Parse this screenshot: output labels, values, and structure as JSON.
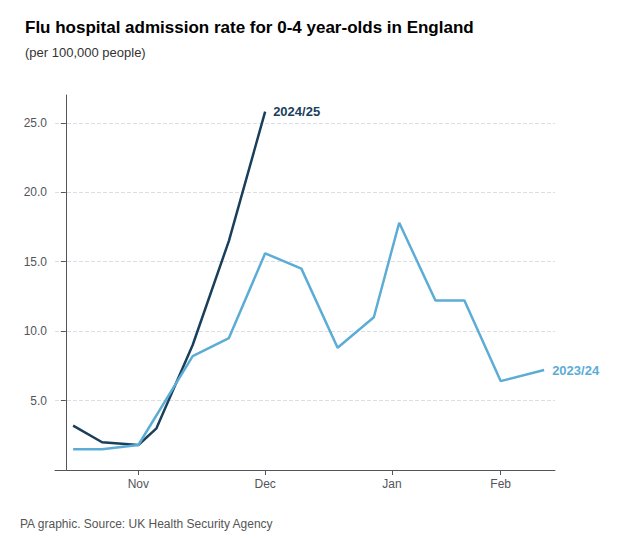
{
  "chart_data": {
    "type": "line",
    "title": "Flu hospital admission rate for 0-4 year-olds in England",
    "subtitle": "(per 100,000 people)",
    "annotations": [
      "PA graphic. Source: UK Health Security Agency"
    ],
    "series": [
      {
        "name": "2024/25",
        "color": "#1a3f5c",
        "x": [
          0.2,
          1.0,
          2.0,
          2.5,
          3.5,
          4.5,
          5.5
        ],
        "values": [
          3.2,
          2.0,
          1.8,
          3.0,
          9.0,
          16.5,
          25.8
        ]
      },
      {
        "name": "2023/24",
        "color": "#5badd6",
        "x": [
          0.2,
          1.0,
          2.0,
          3.5,
          4.5,
          5.5,
          6.5,
          7.5,
          8.5,
          9.2,
          10.2,
          11.0,
          12.0,
          13.2
        ],
        "values": [
          1.5,
          1.5,
          1.8,
          8.2,
          9.5,
          15.6,
          14.5,
          8.8,
          11.0,
          17.8,
          12.2,
          12.2,
          6.4,
          7.2
        ]
      }
    ],
    "xlim": [
      -0.3,
      13.5
    ],
    "xticks": [
      {
        "value": 2.0,
        "label": "Nov"
      },
      {
        "value": 5.5,
        "label": "Dec"
      },
      {
        "value": 9.0,
        "label": "Jan"
      },
      {
        "value": 12.0,
        "label": "Feb"
      }
    ],
    "ylim": [
      0,
      27
    ],
    "yticks": [
      {
        "value": 5.0,
        "label": "5.0"
      },
      {
        "value": 10.0,
        "label": "10.0"
      },
      {
        "value": 15.0,
        "label": "15.0"
      },
      {
        "value": 20.0,
        "label": "20.0"
      },
      {
        "value": 25.0,
        "label": "25.0"
      }
    ],
    "grid": true
  }
}
